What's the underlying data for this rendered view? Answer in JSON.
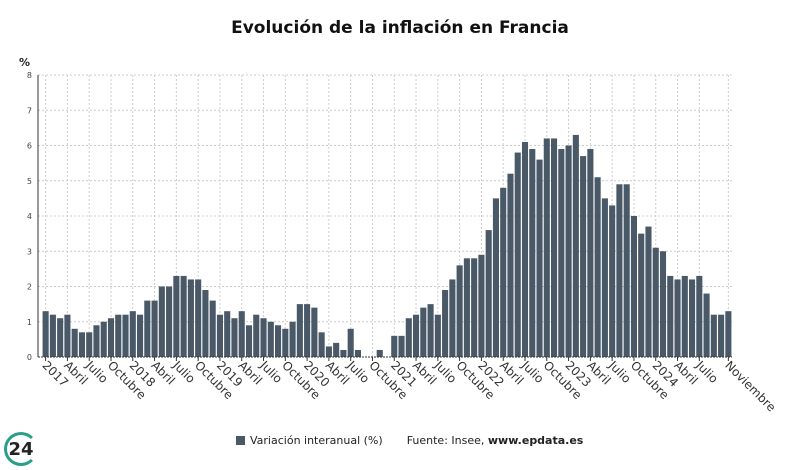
{
  "chart_data": {
    "type": "bar",
    "title": "Evolución de la inflación en Francia",
    "ylabel": "%",
    "xlabel": "",
    "ylim": [
      0,
      8
    ],
    "yticks": [
      "0",
      "1",
      "2",
      "3",
      "4",
      "5",
      "6",
      "7",
      "8"
    ],
    "grid": true,
    "legend_placement": "bottom",
    "series": [
      {
        "name": "Variación interanual (%)",
        "color": "#4a5967",
        "values": [
          1.3,
          1.2,
          1.1,
          1.2,
          0.8,
          0.7,
          0.7,
          0.9,
          1.0,
          1.1,
          1.2,
          1.2,
          1.3,
          1.2,
          1.6,
          1.6,
          2.0,
          2.0,
          2.3,
          2.3,
          2.2,
          2.2,
          1.9,
          1.6,
          1.2,
          1.3,
          1.1,
          1.3,
          0.9,
          1.2,
          1.1,
          1.0,
          0.9,
          0.8,
          1.0,
          1.5,
          1.5,
          1.4,
          0.7,
          0.3,
          0.4,
          0.2,
          0.8,
          0.2,
          0.0,
          0.0,
          0.2,
          0.0,
          0.6,
          0.6,
          1.1,
          1.2,
          1.4,
          1.5,
          1.2,
          1.9,
          2.2,
          2.6,
          2.8,
          2.8,
          2.9,
          3.6,
          4.5,
          4.8,
          5.2,
          5.8,
          6.1,
          5.9,
          5.6,
          6.2,
          6.2,
          5.9,
          6.0,
          6.3,
          5.7,
          5.9,
          5.1,
          4.5,
          4.3,
          4.9,
          4.9,
          4.0,
          3.5,
          3.7,
          3.1,
          3.0,
          2.3,
          2.2,
          2.3,
          2.2,
          2.3,
          1.8,
          1.2,
          1.2,
          1.3
        ]
      }
    ],
    "xticks": [
      {
        "index": 0,
        "label": "2017"
      },
      {
        "index": 3,
        "label": "Abril"
      },
      {
        "index": 6,
        "label": "Julio"
      },
      {
        "index": 9,
        "label": "Octubre"
      },
      {
        "index": 12,
        "label": "2018"
      },
      {
        "index": 15,
        "label": "Abril"
      },
      {
        "index": 18,
        "label": "Julio"
      },
      {
        "index": 21,
        "label": "Octubre"
      },
      {
        "index": 24,
        "label": "2019"
      },
      {
        "index": 27,
        "label": "Abril"
      },
      {
        "index": 30,
        "label": "Julio"
      },
      {
        "index": 33,
        "label": "Octubre"
      },
      {
        "index": 36,
        "label": "2020"
      },
      {
        "index": 39,
        "label": "Abril"
      },
      {
        "index": 42,
        "label": "Julio"
      },
      {
        "index": 45,
        "label": "Octubre"
      },
      {
        "index": 48,
        "label": "2021"
      },
      {
        "index": 51,
        "label": "Abril"
      },
      {
        "index": 54,
        "label": "Julio"
      },
      {
        "index": 57,
        "label": "Octubre"
      },
      {
        "index": 60,
        "label": "2022"
      },
      {
        "index": 63,
        "label": "Abril"
      },
      {
        "index": 66,
        "label": "Julio"
      },
      {
        "index": 69,
        "label": "Octubre"
      },
      {
        "index": 72,
        "label": "2023"
      },
      {
        "index": 75,
        "label": "Abril"
      },
      {
        "index": 78,
        "label": "Julio"
      },
      {
        "index": 81,
        "label": "Octubre"
      },
      {
        "index": 84,
        "label": "2024"
      },
      {
        "index": 87,
        "label": "Abril"
      },
      {
        "index": 90,
        "label": "Julio"
      },
      {
        "index": 94,
        "label": "Noviembre"
      }
    ]
  },
  "legend": {
    "label": "Variación interanual (%)",
    "source_prefix": "Fuente: Insee, ",
    "source_url": "www.epdata.es"
  },
  "logo": {
    "text": "24"
  }
}
